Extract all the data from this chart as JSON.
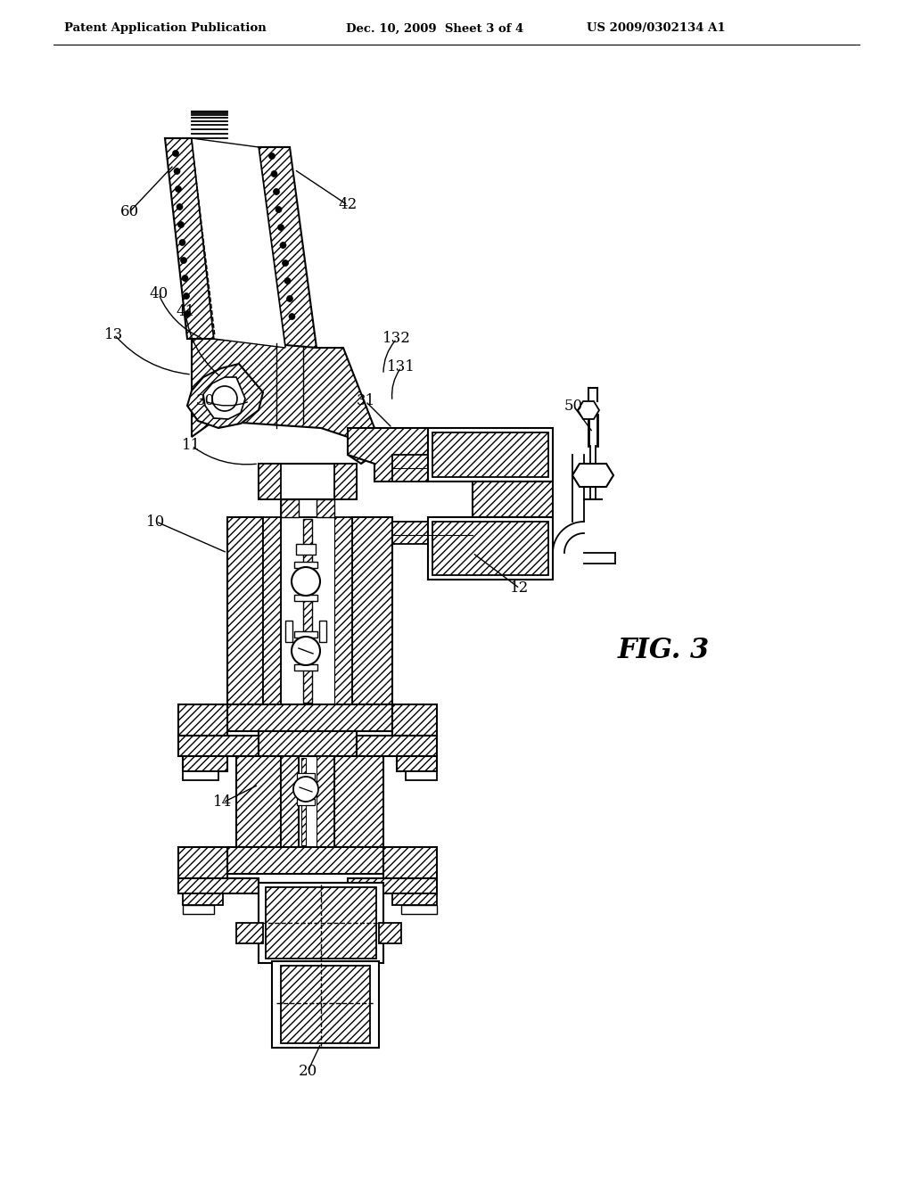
{
  "bg_color": "#ffffff",
  "line_color": "#000000",
  "header_left": "Patent Application Publication",
  "header_mid": "Dec. 10, 2009  Sheet 3 of 4",
  "header_right": "US 2009/0302134 A1",
  "fig_label": "FIG. 3"
}
